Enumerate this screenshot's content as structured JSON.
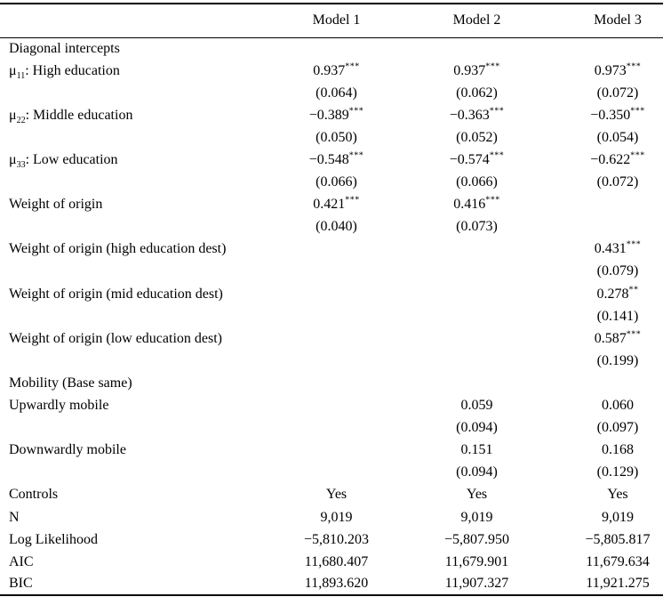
{
  "table": {
    "columns": [
      "Model 1",
      "Model 2",
      "Model 3"
    ],
    "rows": [
      {
        "kind": "section",
        "label": [
          {
            "t": "Diagonal intercepts"
          }
        ],
        "cells": [
          null,
          null,
          null
        ]
      },
      {
        "kind": "coef",
        "label": [
          {
            "t": "μ"
          },
          {
            "t": "11",
            "sub": true
          },
          {
            "t": ": High education"
          }
        ],
        "cells": [
          {
            "v": "0.937",
            "s": "***"
          },
          {
            "v": "0.937",
            "s": "***"
          },
          {
            "v": "0.973",
            "s": "***"
          }
        ]
      },
      {
        "kind": "se",
        "label": [],
        "cells": [
          {
            "v": "(0.064)"
          },
          {
            "v": "(0.062)"
          },
          {
            "v": "(0.072)"
          }
        ]
      },
      {
        "kind": "coef",
        "label": [
          {
            "t": "μ"
          },
          {
            "t": "22",
            "sub": true
          },
          {
            "t": ": Middle education"
          }
        ],
        "cells": [
          {
            "v": "−0.389",
            "s": "***"
          },
          {
            "v": "−0.363",
            "s": "***"
          },
          {
            "v": "−0.350",
            "s": "***"
          }
        ]
      },
      {
        "kind": "se",
        "label": [],
        "cells": [
          {
            "v": "(0.050)"
          },
          {
            "v": "(0.052)"
          },
          {
            "v": "(0.054)"
          }
        ]
      },
      {
        "kind": "coef",
        "label": [
          {
            "t": "μ"
          },
          {
            "t": "33",
            "sub": true
          },
          {
            "t": ": Low education"
          }
        ],
        "cells": [
          {
            "v": "−0.548",
            "s": "***"
          },
          {
            "v": "−0.574",
            "s": "***"
          },
          {
            "v": "−0.622",
            "s": "***"
          }
        ]
      },
      {
        "kind": "se",
        "label": [],
        "cells": [
          {
            "v": "(0.066)"
          },
          {
            "v": "(0.066)"
          },
          {
            "v": "(0.072)"
          }
        ]
      },
      {
        "kind": "coef",
        "label": [
          {
            "t": "Weight of origin"
          }
        ],
        "cells": [
          {
            "v": "0.421",
            "s": "***"
          },
          {
            "v": "0.416",
            "s": "***"
          },
          null
        ]
      },
      {
        "kind": "se",
        "label": [],
        "cells": [
          {
            "v": "(0.040)"
          },
          {
            "v": "(0.073)"
          },
          null
        ]
      },
      {
        "kind": "coef",
        "label": [
          {
            "t": "Weight of origin (high education dest)"
          }
        ],
        "cells": [
          null,
          null,
          {
            "v": "0.431",
            "s": "***"
          }
        ]
      },
      {
        "kind": "se",
        "label": [],
        "cells": [
          null,
          null,
          {
            "v": "(0.079)"
          }
        ]
      },
      {
        "kind": "coef",
        "label": [
          {
            "t": "Weight of origin (mid education dest)"
          }
        ],
        "cells": [
          null,
          null,
          {
            "v": "0.278",
            "s": "**"
          }
        ]
      },
      {
        "kind": "se",
        "label": [],
        "cells": [
          null,
          null,
          {
            "v": "(0.141)"
          }
        ]
      },
      {
        "kind": "coef",
        "label": [
          {
            "t": "Weight of origin (low education dest)"
          }
        ],
        "cells": [
          null,
          null,
          {
            "v": "0.587",
            "s": "***"
          }
        ]
      },
      {
        "kind": "se",
        "label": [],
        "cells": [
          null,
          null,
          {
            "v": "(0.199)"
          }
        ]
      },
      {
        "kind": "section",
        "label": [
          {
            "t": "Mobility (Base same)"
          }
        ],
        "cells": [
          null,
          null,
          null
        ]
      },
      {
        "kind": "coef",
        "label": [
          {
            "t": "Upwardly mobile"
          }
        ],
        "cells": [
          null,
          {
            "v": "0.059"
          },
          {
            "v": "0.060"
          }
        ]
      },
      {
        "kind": "se",
        "label": [],
        "cells": [
          null,
          {
            "v": "(0.094)"
          },
          {
            "v": "(0.097)"
          }
        ]
      },
      {
        "kind": "coef",
        "label": [
          {
            "t": "Downwardly mobile"
          }
        ],
        "cells": [
          null,
          {
            "v": "0.151"
          },
          {
            "v": "0.168"
          }
        ]
      },
      {
        "kind": "se",
        "label": [],
        "cells": [
          null,
          {
            "v": "(0.094)"
          },
          {
            "v": "(0.129)"
          }
        ]
      },
      {
        "kind": "stat",
        "label": [
          {
            "t": "Controls"
          }
        ],
        "cells": [
          {
            "v": "Yes"
          },
          {
            "v": "Yes"
          },
          {
            "v": "Yes"
          }
        ]
      },
      {
        "kind": "stat",
        "label": [
          {
            "t": "N"
          }
        ],
        "cells": [
          {
            "v": "9,019"
          },
          {
            "v": "9,019"
          },
          {
            "v": "9,019"
          }
        ]
      },
      {
        "kind": "stat",
        "label": [
          {
            "t": "Log Likelihood"
          }
        ],
        "cells": [
          {
            "v": "−5,810.203"
          },
          {
            "v": "−5,807.950"
          },
          {
            "v": "−5,805.817"
          }
        ]
      },
      {
        "kind": "stat",
        "label": [
          {
            "t": "AIC"
          }
        ],
        "cells": [
          {
            "v": "11,680.407"
          },
          {
            "v": "11,679.901"
          },
          {
            "v": "11,679.634"
          }
        ]
      },
      {
        "kind": "stat",
        "label": [
          {
            "t": "BIC"
          }
        ],
        "cells": [
          {
            "v": "11,893.620"
          },
          {
            "v": "11,907.327"
          },
          {
            "v": "11,921.275"
          }
        ]
      }
    ]
  }
}
